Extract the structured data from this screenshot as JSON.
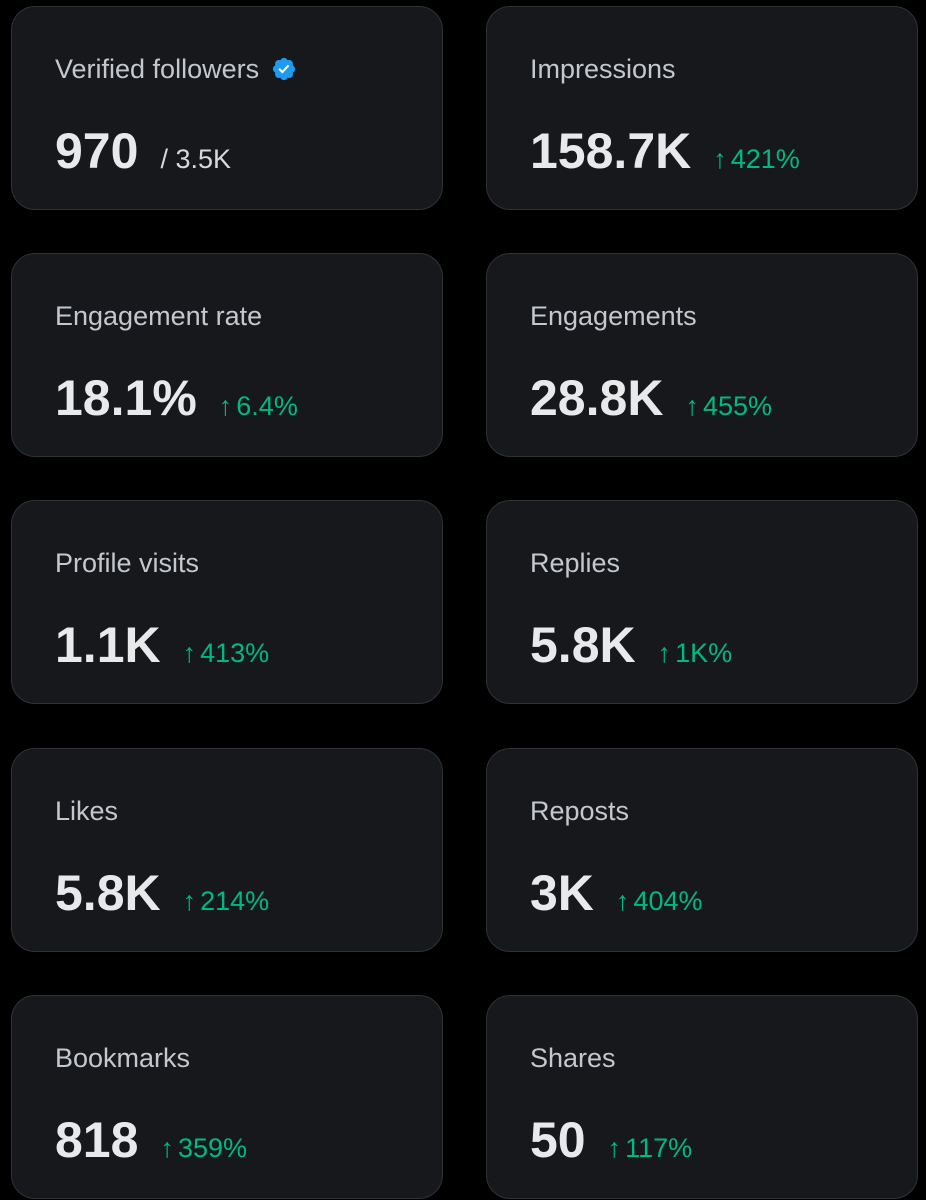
{
  "colors": {
    "background": "#000000",
    "card_background": "#16181c",
    "card_border": "#2f3336",
    "label": "#c4c7cb",
    "value": "#e7e9ea",
    "positive_change": "#00ba7c",
    "verified_badge": "#1d9bf0"
  },
  "icons": {
    "verified": "verified-badge-icon",
    "trend": "arrow-up-icon"
  },
  "trend_arrow": "↑",
  "metrics": {
    "verified_followers": {
      "label": "Verified followers",
      "value": "970",
      "secondary": "/ 3.5K"
    },
    "impressions": {
      "label": "Impressions",
      "value": "158.7K",
      "change": "421%"
    },
    "engagement_rate": {
      "label": "Engagement rate",
      "value": "18.1%",
      "change": "6.4%"
    },
    "engagements": {
      "label": "Engagements",
      "value": "28.8K",
      "change": "455%"
    },
    "profile_visits": {
      "label": "Profile visits",
      "value": "1.1K",
      "change": "413%"
    },
    "replies": {
      "label": "Replies",
      "value": "5.8K",
      "change": "1K%"
    },
    "likes": {
      "label": "Likes",
      "value": "5.8K",
      "change": "214%"
    },
    "reposts": {
      "label": "Reposts",
      "value": "3K",
      "change": "404%"
    },
    "bookmarks": {
      "label": "Bookmarks",
      "value": "818",
      "change": "359%"
    },
    "shares": {
      "label": "Shares",
      "value": "50",
      "change": "117%"
    }
  }
}
